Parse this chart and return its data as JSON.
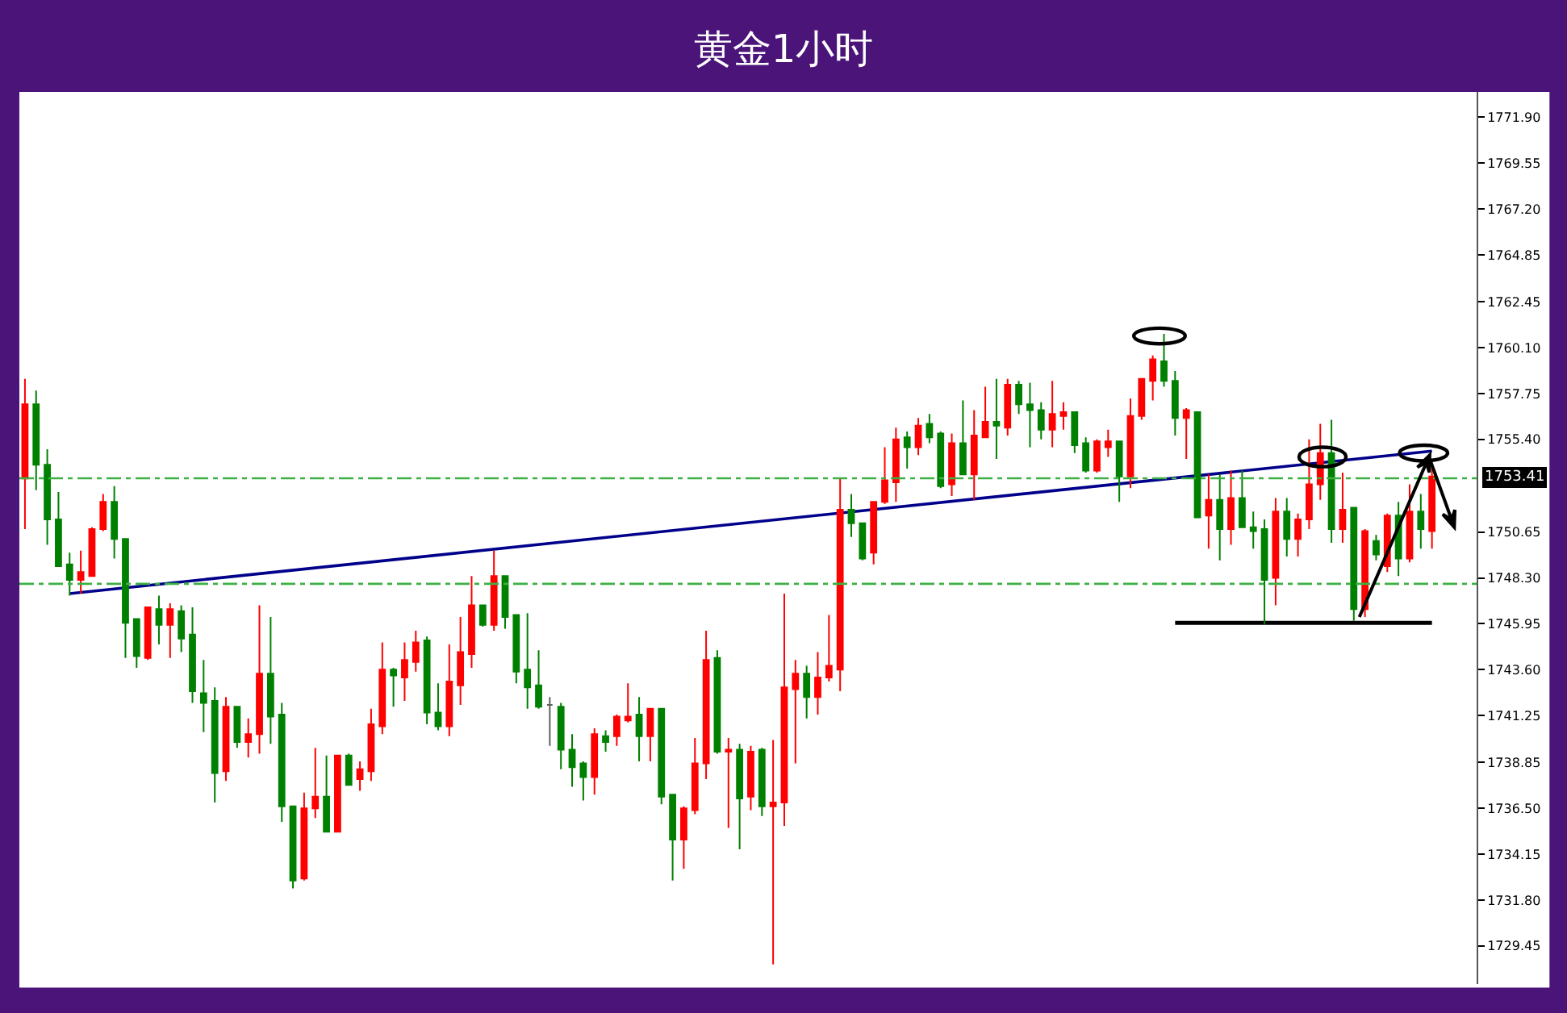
{
  "chart_data": {
    "type": "candlestick",
    "title": "黄金1小时",
    "categories": [
      null,
      null,
      null,
      null,
      null,
      null,
      null,
      null,
      null,
      null,
      null,
      null,
      null,
      null,
      null,
      null,
      null,
      null,
      null,
      null,
      null,
      null,
      null,
      null,
      null,
      null,
      null,
      null,
      null,
      null,
      null,
      null,
      null,
      null,
      null,
      null,
      null,
      null,
      null,
      null,
      null,
      null,
      null,
      null,
      null,
      null,
      null,
      null,
      null,
      null,
      null,
      null,
      null,
      null,
      null,
      null,
      null,
      null,
      null,
      null,
      null,
      null,
      null,
      null,
      null,
      null,
      null,
      null,
      null,
      null,
      null,
      null,
      null,
      null,
      null,
      null,
      null,
      null,
      null,
      null,
      null,
      null,
      null,
      null,
      null,
      null,
      null,
      null,
      null,
      null,
      null,
      null,
      null,
      null,
      null,
      null,
      null,
      null,
      null,
      null,
      null,
      null,
      null,
      null,
      null,
      null,
      null,
      null,
      null,
      null,
      null,
      null,
      null,
      null,
      null,
      null,
      null,
      null,
      null,
      null,
      null,
      null,
      null,
      null,
      null,
      null,
      null
    ],
    "ohlc": [
      [
        1753.4,
        1758.5,
        1750.8,
        1757.2
      ],
      [
        1757.2,
        1757.9,
        1752.8,
        1754.1
      ],
      [
        1754.1,
        1754.9,
        1750.0,
        1751.3
      ],
      [
        1751.3,
        1752.7,
        1748.9,
        1748.9
      ],
      [
        1749.0,
        1749.6,
        1747.4,
        1748.2
      ],
      [
        1748.2,
        1749.7,
        1747.5,
        1748.6
      ],
      [
        1748.4,
        1750.9,
        1748.4,
        1750.8
      ],
      [
        1750.8,
        1752.6,
        1750.7,
        1752.2
      ],
      [
        1752.2,
        1753.0,
        1749.3,
        1750.3
      ],
      [
        1750.3,
        1750.3,
        1744.2,
        1746.0
      ],
      [
        1746.2,
        1746.2,
        1743.7,
        1744.3
      ],
      [
        1744.2,
        1746.8,
        1744.1,
        1746.8
      ],
      [
        1746.7,
        1747.4,
        1744.9,
        1745.9
      ],
      [
        1745.9,
        1747.0,
        1744.2,
        1746.7
      ],
      [
        1746.6,
        1746.9,
        1744.5,
        1745.2
      ],
      [
        1745.4,
        1746.8,
        1741.9,
        1742.5
      ],
      [
        1742.4,
        1744.1,
        1740.4,
        1741.9
      ],
      [
        1742.0,
        1742.7,
        1736.8,
        1738.3
      ],
      [
        1738.4,
        1742.2,
        1737.9,
        1741.7
      ],
      [
        1741.7,
        1741.7,
        1739.6,
        1739.9
      ],
      [
        1739.9,
        1741.1,
        1739.1,
        1740.3
      ],
      [
        1740.3,
        1746.9,
        1739.3,
        1743.4
      ],
      [
        1743.4,
        1746.3,
        1739.8,
        1741.2
      ],
      [
        1741.3,
        1741.9,
        1735.8,
        1736.6
      ],
      [
        1736.6,
        1736.6,
        1732.4,
        1732.8
      ],
      [
        1732.9,
        1737.3,
        1732.8,
        1736.5
      ],
      [
        1736.5,
        1739.6,
        1736.0,
        1737.1
      ],
      [
        1737.1,
        1739.2,
        1735.3,
        1735.3
      ],
      [
        1735.3,
        1739.2,
        1735.3,
        1739.2
      ],
      [
        1739.2,
        1739.3,
        1737.7,
        1737.7
      ],
      [
        1738.0,
        1738.9,
        1737.4,
        1738.5
      ],
      [
        1738.4,
        1741.6,
        1737.9,
        1740.8
      ],
      [
        1740.7,
        1745.0,
        1740.3,
        1743.6
      ],
      [
        1743.6,
        1743.7,
        1741.7,
        1743.3
      ],
      [
        1743.2,
        1745.0,
        1742.0,
        1744.1
      ],
      [
        1744.0,
        1745.6,
        1743.5,
        1745.0
      ],
      [
        1745.1,
        1745.3,
        1740.8,
        1741.4
      ],
      [
        1741.4,
        1742.9,
        1740.5,
        1740.7
      ],
      [
        1740.7,
        1744.9,
        1740.2,
        1743.0
      ],
      [
        1742.8,
        1746.3,
        1741.8,
        1744.5
      ],
      [
        1744.4,
        1748.4,
        1743.7,
        1746.9
      ],
      [
        1746.9,
        1746.9,
        1745.8,
        1745.9
      ],
      [
        1745.9,
        1749.7,
        1745.6,
        1748.4
      ],
      [
        1748.4,
        1748.4,
        1745.7,
        1746.3
      ],
      [
        1746.4,
        1746.4,
        1742.9,
        1743.5
      ],
      [
        1743.6,
        1746.5,
        1741.6,
        1742.7
      ],
      [
        1742.8,
        1744.6,
        1741.6,
        1741.7
      ],
      [
        1741.8,
        1742.2,
        1739.7,
        1741.8
      ],
      [
        1741.7,
        1741.9,
        1738.5,
        1739.5
      ],
      [
        1739.5,
        1740.3,
        1737.6,
        1738.6
      ],
      [
        1738.8,
        1738.9,
        1736.9,
        1738.1
      ],
      [
        1738.1,
        1740.6,
        1737.2,
        1740.3
      ],
      [
        1740.2,
        1740.5,
        1739.4,
        1739.9
      ],
      [
        1740.2,
        1741.3,
        1739.7,
        1741.2
      ],
      [
        1741.0,
        1742.9,
        1740.9,
        1741.2
      ],
      [
        1741.3,
        1742.2,
        1738.9,
        1740.2
      ],
      [
        1740.2,
        1741.6,
        1738.9,
        1741.6
      ],
      [
        1741.6,
        1741.6,
        1736.7,
        1737.1
      ],
      [
        1737.2,
        1737.2,
        1732.8,
        1734.9
      ],
      [
        1734.9,
        1736.6,
        1733.4,
        1736.5
      ],
      [
        1736.4,
        1740.1,
        1736.2,
        1738.8
      ],
      [
        1738.8,
        1745.6,
        1738.0,
        1744.1
      ],
      [
        1744.2,
        1744.6,
        1739.3,
        1739.4
      ],
      [
        1739.4,
        1740.1,
        1735.5,
        1739.5
      ],
      [
        1739.5,
        1739.8,
        1734.4,
        1737.0
      ],
      [
        1737.1,
        1739.7,
        1736.4,
        1739.4
      ],
      [
        1739.5,
        1739.6,
        1736.1,
        1736.6
      ],
      [
        1736.6,
        1740.0,
        1728.5,
        1736.8
      ],
      [
        1736.8,
        1747.5,
        1735.6,
        1742.7
      ],
      [
        1742.6,
        1744.1,
        1738.8,
        1743.4
      ],
      [
        1743.4,
        1743.8,
        1741.1,
        1742.2
      ],
      [
        1742.2,
        1744.5,
        1741.3,
        1743.2
      ],
      [
        1743.2,
        1746.4,
        1743.0,
        1743.8
      ],
      [
        1743.6,
        1753.4,
        1742.5,
        1751.8
      ],
      [
        1751.8,
        1752.6,
        1750.4,
        1751.1
      ],
      [
        1751.1,
        1751.1,
        1749.2,
        1749.3
      ],
      [
        1749.6,
        1752.2,
        1749.0,
        1752.2
      ],
      [
        1752.2,
        1755.0,
        1752.1,
        1753.3
      ],
      [
        1753.2,
        1756.0,
        1752.2,
        1755.4
      ],
      [
        1755.5,
        1755.8,
        1753.9,
        1755.0
      ],
      [
        1755.0,
        1756.5,
        1754.6,
        1756.1
      ],
      [
        1756.2,
        1756.7,
        1755.2,
        1755.5
      ],
      [
        1755.7,
        1755.8,
        1752.9,
        1753.0
      ],
      [
        1753.1,
        1755.7,
        1752.5,
        1755.2
      ],
      [
        1755.2,
        1757.4,
        1753.6,
        1753.6
      ],
      [
        1753.6,
        1756.9,
        1752.3,
        1755.6
      ],
      [
        1755.5,
        1758.1,
        1755.5,
        1756.3
      ],
      [
        1756.3,
        1758.5,
        1754.4,
        1756.1
      ],
      [
        1756.0,
        1758.5,
        1755.6,
        1758.2
      ],
      [
        1758.2,
        1758.4,
        1756.7,
        1757.2
      ],
      [
        1757.2,
        1758.3,
        1755.0,
        1756.9
      ],
      [
        1756.9,
        1757.3,
        1755.4,
        1755.9
      ],
      [
        1755.9,
        1758.4,
        1755.0,
        1756.7
      ],
      [
        1756.6,
        1757.3,
        1755.9,
        1756.8
      ],
      [
        1756.8,
        1756.8,
        1754.7,
        1755.1
      ],
      [
        1755.2,
        1755.5,
        1753.7,
        1753.8
      ],
      [
        1753.8,
        1755.4,
        1753.7,
        1755.3
      ],
      [
        1755.0,
        1755.9,
        1754.5,
        1755.3
      ],
      [
        1755.3,
        1755.3,
        1752.2,
        1753.5
      ],
      [
        1753.5,
        1757.5,
        1752.9,
        1756.6
      ],
      [
        1756.6,
        1758.5,
        1756.4,
        1758.5
      ],
      [
        1758.4,
        1759.7,
        1757.4,
        1759.5
      ],
      [
        1759.4,
        1760.8,
        1758.1,
        1758.4
      ],
      [
        1758.4,
        1758.9,
        1755.6,
        1756.5
      ],
      [
        1756.5,
        1757.0,
        1754.4,
        1756.9
      ],
      [
        1756.8,
        1756.8,
        1751.4,
        1751.4
      ],
      [
        1751.5,
        1753.6,
        1749.8,
        1752.3
      ],
      [
        1752.3,
        1753.6,
        1749.2,
        1750.8
      ],
      [
        1750.8,
        1753.8,
        1750.0,
        1752.4
      ],
      [
        1752.4,
        1753.8,
        1750.9,
        1750.9
      ],
      [
        1750.9,
        1751.7,
        1749.8,
        1750.7
      ],
      [
        1750.8,
        1751.3,
        1745.9,
        1748.2
      ],
      [
        1748.3,
        1752.4,
        1746.9,
        1751.7
      ],
      [
        1751.7,
        1752.4,
        1749.4,
        1750.3
      ],
      [
        1750.3,
        1751.6,
        1749.4,
        1751.3
      ],
      [
        1751.3,
        1755.4,
        1750.8,
        1753.1
      ],
      [
        1753.1,
        1756.2,
        1752.3,
        1754.7
      ],
      [
        1754.7,
        1756.4,
        1750.1,
        1750.8
      ],
      [
        1750.8,
        1753.7,
        1750.1,
        1751.8
      ],
      [
        1751.9,
        1751.9,
        1746.1,
        1746.7
      ],
      [
        1746.7,
        1750.8,
        1746.3,
        1750.7
      ],
      [
        1750.2,
        1750.5,
        1749.2,
        1749.5
      ],
      [
        1748.9,
        1751.6,
        1748.6,
        1751.5
      ],
      [
        1751.5,
        1752.2,
        1748.4,
        1749.3
      ],
      [
        1749.3,
        1753.1,
        1749.1,
        1751.7
      ],
      [
        1751.7,
        1752.6,
        1749.8,
        1750.8
      ],
      [
        1750.7,
        1754.0,
        1749.8,
        1753.5
      ]
    ],
    "colors": [
      "#ff0000",
      "#008000",
      "#008000",
      "#008000",
      "#008000",
      "#ff0000",
      "#ff0000",
      "#ff0000",
      "#008000",
      "#008000",
      "#008000",
      "#ff0000",
      "#008000",
      "#ff0000",
      "#008000",
      "#008000",
      "#008000",
      "#008000",
      "#ff0000",
      "#008000",
      "#ff0000",
      "#ff0000",
      "#008000",
      "#008000",
      "#008000",
      "#ff0000",
      "#ff0000",
      "#008000",
      "#ff0000",
      "#008000",
      "#ff0000",
      "#ff0000",
      "#ff0000",
      "#008000",
      "#ff0000",
      "#ff0000",
      "#008000",
      "#008000",
      "#ff0000",
      "#ff0000",
      "#ff0000",
      "#008000",
      "#ff0000",
      "#008000",
      "#008000",
      "#008000",
      "#008000",
      "#606060",
      "#008000",
      "#008000",
      "#008000",
      "#ff0000",
      "#008000",
      "#ff0000",
      "#ff0000",
      "#008000",
      "#ff0000",
      "#008000",
      "#008000",
      "#ff0000",
      "#ff0000",
      "#ff0000",
      "#008000",
      "#ff0000",
      "#008000",
      "#ff0000",
      "#008000",
      "#ff0000",
      "#ff0000",
      "#ff0000",
      "#008000",
      "#ff0000",
      "#ff0000",
      "#ff0000",
      "#008000",
      "#008000",
      "#ff0000",
      "#ff0000",
      "#ff0000",
      "#008000",
      "#ff0000",
      "#008000",
      "#008000",
      "#ff0000",
      "#008000",
      "#ff0000",
      "#ff0000",
      "#008000",
      "#ff0000",
      "#008000",
      "#008000",
      "#008000",
      "#ff0000",
      "#ff0000",
      "#008000",
      "#008000",
      "#ff0000",
      "#ff0000",
      "#008000",
      "#ff0000",
      "#ff0000",
      "#ff0000",
      "#008000",
      "#008000",
      "#ff0000",
      "#008000",
      "#ff0000",
      "#008000",
      "#ff0000",
      "#008000",
      "#008000",
      "#008000",
      "#ff0000",
      "#008000",
      "#ff0000",
      "#ff0000",
      "#ff0000",
      "#008000",
      "#ff0000",
      "#008000",
      "#ff0000",
      "#008000",
      "#ff0000",
      "#008000",
      "#ff0000",
      "#008000",
      "#ff0000"
    ],
    "series": [
      {
        "type": "line",
        "color": "#00008b",
        "values": [
          null,
          null,
          null,
          null,
          1747.5,
          null,
          null,
          null,
          null,
          null,
          null,
          null,
          null,
          null,
          null,
          null,
          null,
          null,
          null,
          null,
          null,
          null,
          null,
          null,
          null,
          null,
          null,
          null,
          null,
          null,
          null,
          null,
          null,
          null,
          null,
          null,
          null,
          null,
          null,
          null,
          null,
          null,
          null,
          null,
          null,
          null,
          null,
          null,
          null,
          null,
          null,
          null,
          null,
          null,
          null,
          null,
          null,
          null,
          null,
          null,
          null,
          null,
          null,
          null,
          null,
          null,
          null,
          null,
          null,
          null,
          null,
          null,
          null,
          null,
          null,
          null,
          null,
          null,
          null,
          null,
          null,
          null,
          null,
          null,
          null,
          null,
          null,
          null,
          null,
          null,
          null,
          null,
          null,
          null,
          null,
          null,
          null,
          null,
          null,
          null,
          null,
          null,
          null,
          null,
          null,
          null,
          null,
          null,
          null,
          null,
          null,
          null,
          null,
          null,
          null,
          null,
          null,
          null,
          null,
          null,
          null,
          null,
          null,
          null,
          null,
          null,
          1754.8
        ]
      },
      {
        "type": "line",
        "color": "#000000",
        "values": [
          null,
          null,
          null,
          null,
          null,
          null,
          null,
          null,
          null,
          null,
          null,
          null,
          null,
          null,
          null,
          null,
          null,
          null,
          null,
          null,
          null,
          null,
          null,
          null,
          null,
          null,
          null,
          null,
          null,
          null,
          null,
          null,
          null,
          null,
          null,
          null,
          null,
          null,
          null,
          null,
          null,
          null,
          null,
          null,
          null,
          null,
          null,
          null,
          null,
          null,
          null,
          null,
          null,
          null,
          null,
          null,
          null,
          null,
          null,
          null,
          null,
          null,
          null,
          null,
          null,
          null,
          null,
          null,
          null,
          null,
          null,
          null,
          null,
          null,
          null,
          null,
          null,
          null,
          null,
          null,
          null,
          null,
          null,
          null,
          null,
          null,
          null,
          null,
          null,
          null,
          null,
          null,
          null,
          null,
          null,
          null,
          null,
          null,
          null,
          null,
          null,
          null,
          null,
          1746.0,
          null,
          null,
          null,
          null,
          null,
          null,
          null,
          null,
          null,
          null,
          null,
          null,
          null,
          null,
          null,
          null,
          null,
          null,
          null,
          null,
          null,
          null,
          1746.0
        ]
      }
    ],
    "ref_lines": [
      {
        "axis": "y",
        "value": 1753.41,
        "label": "1753.41",
        "color": "#3cb043",
        "line_style": "dashed"
      },
      {
        "axis": "y",
        "value": 1748.0,
        "color": "#3cb043",
        "line_style": "dashed"
      }
    ],
    "ylim": [
      1727.5,
      1773.2
    ],
    "yticks": [
      {
        "value": 1771.9,
        "label": "1771.90"
      },
      {
        "value": 1769.55,
        "label": "1769.55"
      },
      {
        "value": 1767.2,
        "label": "1767.20"
      },
      {
        "value": 1764.85,
        "label": "1764.85"
      },
      {
        "value": 1762.45,
        "label": "1762.45"
      },
      {
        "value": 1760.1,
        "label": "1760.10"
      },
      {
        "value": 1757.75,
        "label": "1757.75"
      },
      {
        "value": 1755.4,
        "label": "1755.40"
      },
      {
        "value": 1750.65,
        "label": "1750.65"
      },
      {
        "value": 1748.3,
        "label": "1748.30"
      },
      {
        "value": 1745.95,
        "label": "1745.95"
      },
      {
        "value": 1743.6,
        "label": "1743.60"
      },
      {
        "value": 1741.25,
        "label": "1741.25"
      },
      {
        "value": 1738.85,
        "label": "1738.85"
      },
      {
        "value": 1736.5,
        "label": "1736.50"
      },
      {
        "value": 1734.15,
        "label": "1734.15"
      },
      {
        "value": 1731.8,
        "label": "1731.80"
      },
      {
        "value": 1729.45,
        "label": "1729.45"
      }
    ],
    "tick_labels": "y"
  }
}
